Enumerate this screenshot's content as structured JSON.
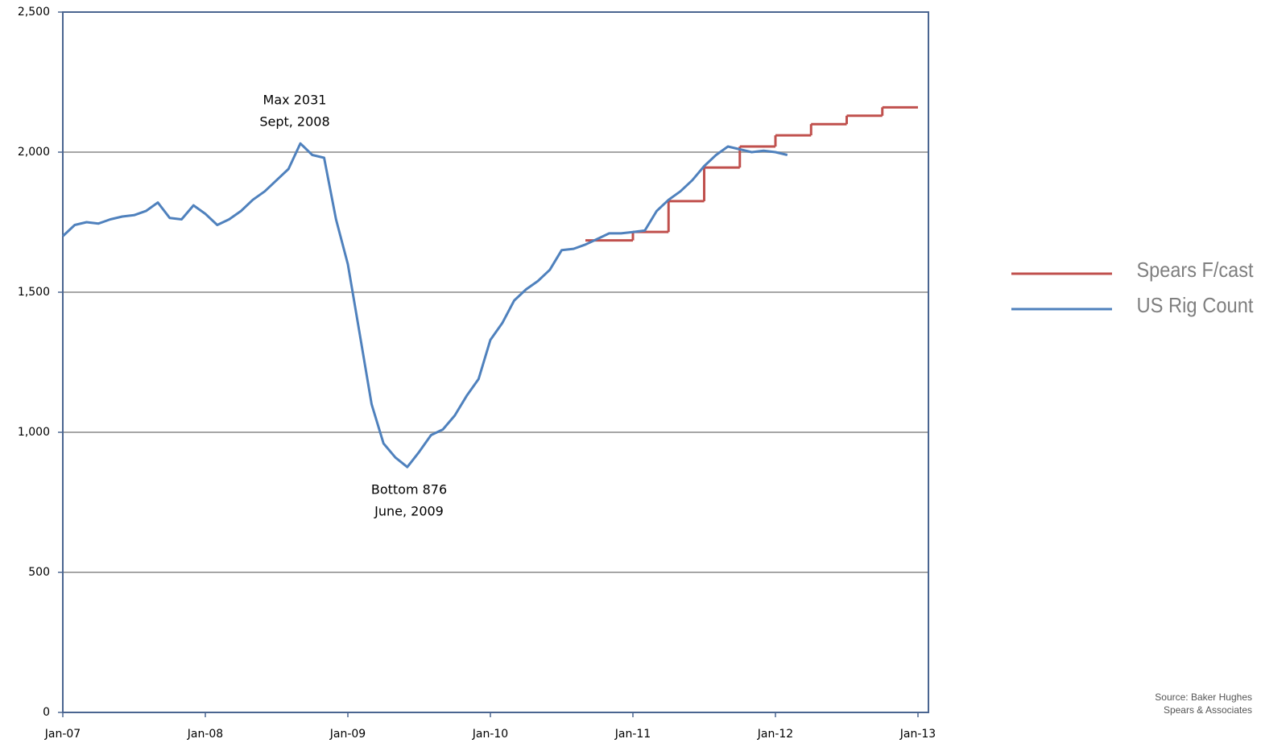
{
  "chart_data": {
    "type": "line",
    "annotations": [
      {
        "lines": [
          "Max 2031",
          "Sept, 2008"
        ],
        "x": "2008-09",
        "y": 2031
      },
      {
        "lines": [
          "Bottom 876",
          "June, 2009"
        ],
        "x": "2009-06",
        "y": 876
      }
    ],
    "xlim": [
      "2007-01",
      "2013-01"
    ],
    "xticks": [
      {
        "value": "2007-01",
        "label": "Jan-07"
      },
      {
        "value": "2008-01",
        "label": "Jan-08"
      },
      {
        "value": "2009-01",
        "label": "Jan-09"
      },
      {
        "value": "2010-01",
        "label": "Jan-10"
      },
      {
        "value": "2011-01",
        "label": "Jan-11"
      },
      {
        "value": "2012-01",
        "label": "Jan-12"
      },
      {
        "value": "2013-01",
        "label": "Jan-13"
      }
    ],
    "ylim": [
      0,
      2500
    ],
    "yticks": [
      0,
      500,
      {
        "value": 1000,
        "label": "1,000"
      },
      {
        "value": 1500,
        "label": "1,500"
      },
      {
        "value": 2000,
        "label": "2,000"
      },
      {
        "value": 2500,
        "label": "2,500"
      }
    ],
    "grid": true,
    "legend": "right",
    "series": [
      {
        "name": "Spears F/cast",
        "color": "#c0504d",
        "step": true,
        "x": [
          "2010-09",
          "2011-01",
          "2011-04",
          "2011-07",
          "2011-10",
          "2012-01",
          "2012-04",
          "2012-07",
          "2012-10"
        ],
        "values": [
          1685,
          1715,
          1825,
          1945,
          2020,
          2060,
          2100,
          2130,
          2160
        ]
      },
      {
        "name": "US Rig Count",
        "color": "#4f81bd",
        "x": [
          "2007-01",
          "2007-02",
          "2007-03",
          "2007-04",
          "2007-05",
          "2007-06",
          "2007-07",
          "2007-08",
          "2007-09",
          "2007-10",
          "2007-11",
          "2007-12",
          "2008-01",
          "2008-02",
          "2008-03",
          "2008-04",
          "2008-05",
          "2008-06",
          "2008-07",
          "2008-08",
          "2008-09",
          "2008-10",
          "2008-11",
          "2008-12",
          "2009-01",
          "2009-02",
          "2009-03",
          "2009-04",
          "2009-05",
          "2009-06",
          "2009-07",
          "2009-08",
          "2009-09",
          "2009-10",
          "2009-11",
          "2009-12",
          "2010-01",
          "2010-02",
          "2010-03",
          "2010-04",
          "2010-05",
          "2010-06",
          "2010-07",
          "2010-08",
          "2010-09",
          "2010-10",
          "2010-11",
          "2010-12",
          "2011-01",
          "2011-02",
          "2011-03",
          "2011-04",
          "2011-05",
          "2011-06",
          "2011-07",
          "2011-08",
          "2011-09",
          "2011-10",
          "2011-11",
          "2011-12",
          "2012-01",
          "2012-02"
        ],
        "values": [
          1700,
          1740,
          1750,
          1745,
          1760,
          1770,
          1775,
          1790,
          1820,
          1765,
          1760,
          1810,
          1780,
          1740,
          1760,
          1790,
          1830,
          1860,
          1900,
          1940,
          2031,
          1990,
          1980,
          1760,
          1600,
          1350,
          1100,
          960,
          910,
          876,
          930,
          990,
          1010,
          1060,
          1130,
          1190,
          1330,
          1390,
          1470,
          1510,
          1540,
          1580,
          1650,
          1655,
          1670,
          1690,
          1710,
          1710,
          1715,
          1720,
          1790,
          1830,
          1860,
          1900,
          1950,
          1990,
          2020,
          2010,
          2000,
          2005,
          2000,
          1990
        ]
      }
    ],
    "source": [
      "Source: Baker Hughes",
      "Spears & Associates"
    ]
  }
}
